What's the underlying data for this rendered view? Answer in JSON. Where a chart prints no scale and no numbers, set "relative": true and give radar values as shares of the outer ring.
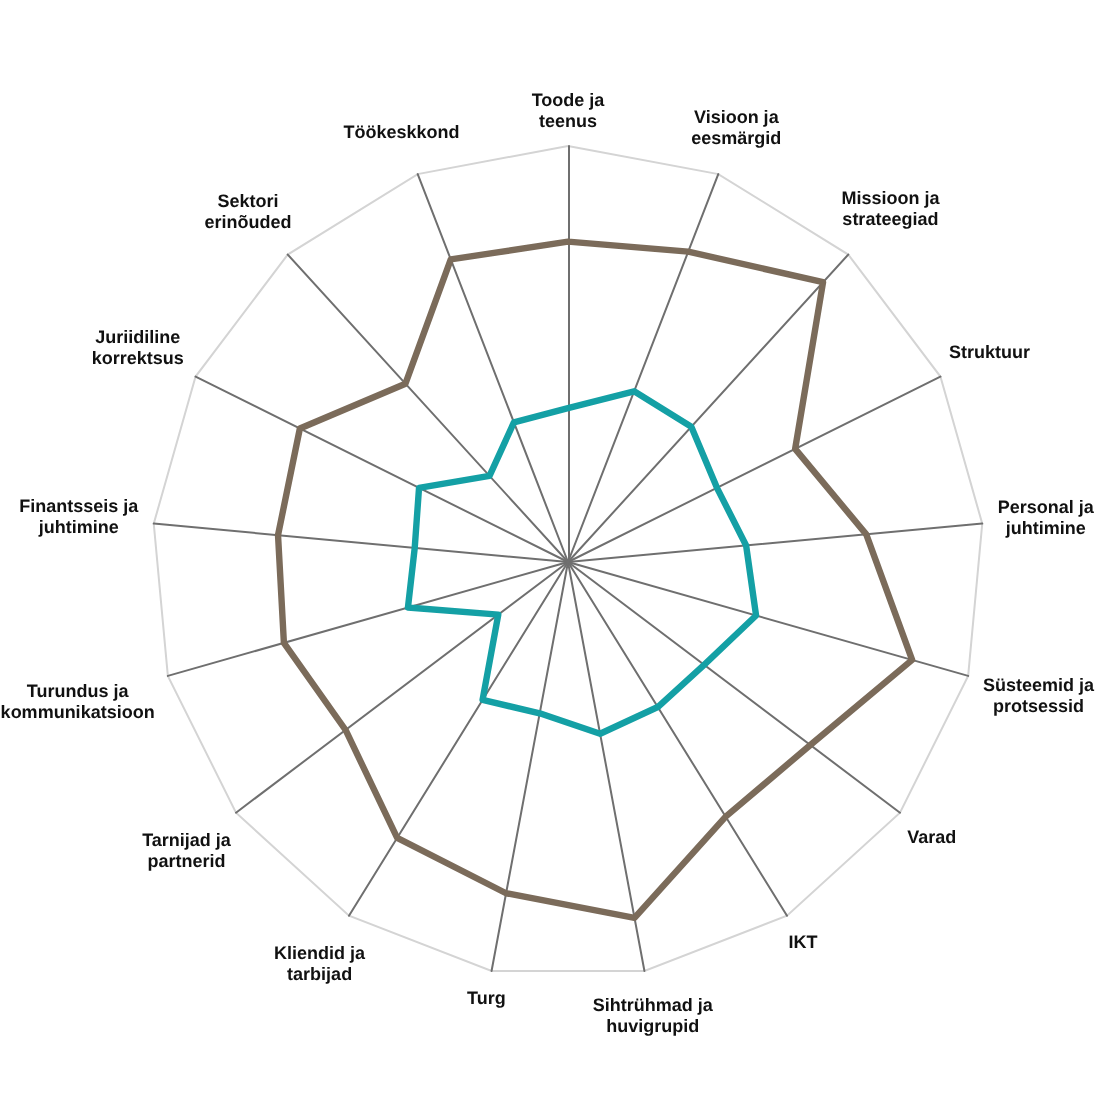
{
  "chart_data": {
    "type": "radar",
    "relative": true,
    "marker": "none",
    "categories": [
      "Toode ja teenus",
      "Visioon ja eesmärgid",
      "Missioon ja strateegiad",
      "Struktuur",
      "Personal ja juhtimine",
      "Süsteemid ja protsessid",
      "Varad",
      "IKT",
      "Sihtrühmad ja huvigrupid",
      "Turg",
      "Kliendid ja tarbijad",
      "Tarnijad ja partnerid",
      "Turundus ja kommunikatsioon",
      "Finantsseis ja juhtimine",
      "Juriidiline korrektsus",
      "Sektori erinõuded",
      "Töökeskkond"
    ],
    "series": [
      {
        "color": "#7b6b5a",
        "values": [
          0.77,
          0.8,
          0.91,
          0.61,
          0.72,
          0.86,
          0.73,
          0.72,
          0.87,
          0.81,
          0.78,
          0.67,
          0.71,
          0.7,
          0.72,
          0.58,
          0.78
        ]
      },
      {
        "color": "#14a0a5",
        "values": [
          0.37,
          0.44,
          0.44,
          0.4,
          0.43,
          0.47,
          0.41,
          0.41,
          0.42,
          0.37,
          0.39,
          0.21,
          0.4,
          0.37,
          0.4,
          0.28,
          0.36
        ]
      }
    ]
  }
}
